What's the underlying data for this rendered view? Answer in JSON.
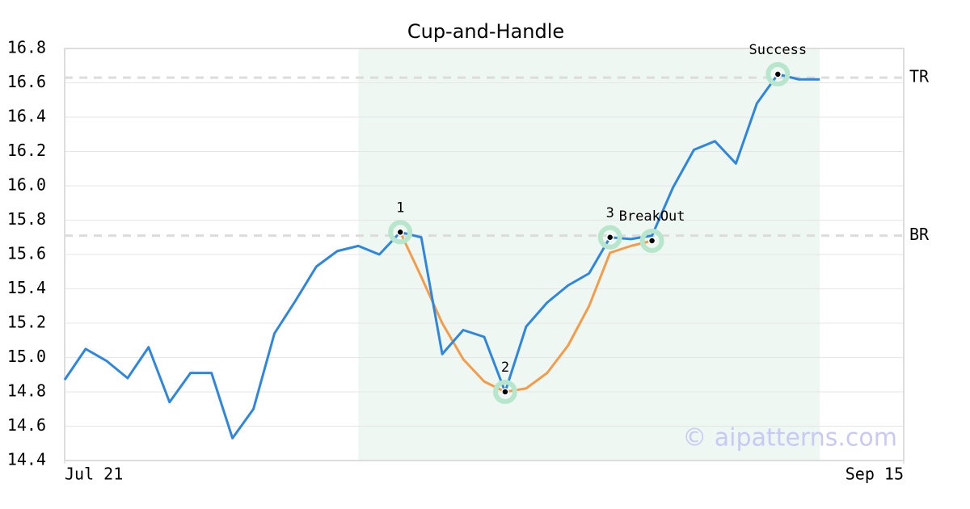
{
  "chart_data": {
    "type": "line",
    "title": "Cup-and-Handle",
    "xlim": [
      0,
      40
    ],
    "xticks": [
      {
        "value": 0,
        "label": "Jul 21"
      },
      {
        "value": 40,
        "label": "Sep 15"
      }
    ],
    "ylim": [
      14.4,
      16.8
    ],
    "yticks": [
      14.4,
      14.6,
      14.8,
      {
        "value": 15,
        "label": "15.0"
      },
      15.2,
      15.4,
      15.6,
      15.8,
      {
        "value": 16,
        "label": "16.0"
      },
      16.2,
      16.4,
      16.6,
      16.8
    ],
    "grid": true,
    "shade": [
      14,
      36
    ],
    "series": [
      {
        "color": "#2e86de",
        "x": [
          0,
          1,
          2,
          3,
          4,
          5,
          6,
          7,
          8,
          9,
          10,
          11,
          12,
          13,
          14,
          15,
          16,
          17,
          18,
          19,
          20,
          21,
          22,
          23,
          24,
          25,
          26,
          27,
          28,
          29,
          30,
          31,
          32,
          33,
          34,
          35,
          36
        ],
        "values": [
          14.87,
          15.05,
          14.98,
          14.88,
          15.06,
          14.74,
          14.91,
          14.91,
          14.53,
          14.7,
          15.14,
          15.33,
          15.53,
          15.62,
          15.65,
          15.6,
          15.73,
          15.7,
          15.02,
          15.16,
          15.12,
          14.8,
          15.18,
          15.32,
          15.42,
          15.49,
          15.7,
          15.69,
          15.71,
          15.99,
          16.21,
          16.26,
          16.13,
          16.48,
          16.65,
          16.62,
          16.62
        ]
      },
      {
        "color": "#f39c4a",
        "x": [
          16,
          17,
          18,
          19,
          20,
          21,
          22,
          23,
          24,
          25,
          26,
          27,
          28
        ],
        "values": [
          15.73,
          15.47,
          15.2,
          14.99,
          14.86,
          14.8,
          14.82,
          14.91,
          15.07,
          15.3,
          15.61,
          15.65,
          15.68
        ]
      }
    ],
    "levels": [
      {
        "label": "TR",
        "value": 16.63
      },
      {
        "label": "BR",
        "value": 15.71
      }
    ],
    "points": [
      {
        "label": "1",
        "x": 16,
        "y": 15.73
      },
      {
        "label": "2",
        "x": 21,
        "y": 14.8
      },
      {
        "label": "3",
        "x": 26,
        "y": 15.7
      },
      {
        "label": "BreakOut",
        "x": 28,
        "y": 15.68
      },
      {
        "label": "Success",
        "x": 34,
        "y": 16.65
      }
    ],
    "watermark": "© aipatterns.com"
  }
}
